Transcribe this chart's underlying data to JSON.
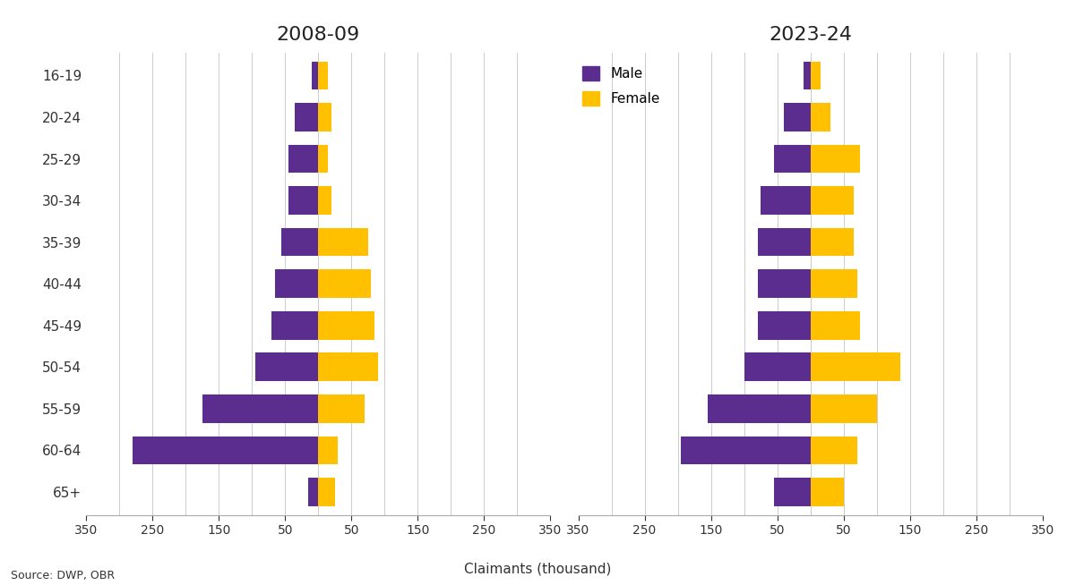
{
  "title_left": "2008-09",
  "title_right": "2023-24",
  "ages": [
    "16-19",
    "20-24",
    "25-29",
    "30-34",
    "35-39",
    "40-44",
    "45-49",
    "50-54",
    "55-59",
    "60-64",
    "65+"
  ],
  "data_2009": {
    "male": [
      10,
      35,
      45,
      45,
      55,
      65,
      70,
      95,
      175,
      280,
      15
    ],
    "female": [
      15,
      20,
      15,
      20,
      75,
      80,
      85,
      90,
      70,
      30,
      25
    ]
  },
  "data_2024": {
    "male": [
      10,
      40,
      55,
      75,
      80,
      80,
      80,
      100,
      155,
      195,
      55
    ],
    "female": [
      15,
      30,
      75,
      65,
      65,
      70,
      75,
      135,
      100,
      70,
      50
    ]
  },
  "color_male": "#5B2D8E",
  "color_female": "#FFC000",
  "xlim": 350,
  "xticks": [
    -350,
    -250,
    -150,
    -50,
    50,
    150,
    250,
    350
  ],
  "xtick_labels": [
    "350",
    "250",
    "150",
    "50",
    "50",
    "150",
    "250",
    "350"
  ],
  "xlabel": "Claimants (thousand)",
  "source": "Source: DWP, OBR",
  "legend_male": "Male",
  "legend_female": "Female",
  "background_color": "#ffffff",
  "grid_color": "#cccccc",
  "title_fontsize": 16,
  "label_fontsize": 11,
  "tick_fontsize": 10
}
